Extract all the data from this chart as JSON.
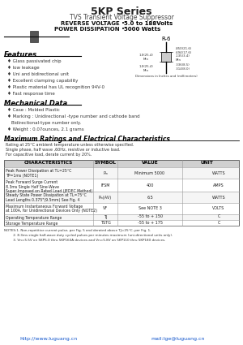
{
  "title": "5KP Series",
  "subtitle": "TVS Transient Voltage Suppressor",
  "rev_voltage_label": "REVERSE VOLTAGE",
  "rev_voltage_value": "5.0 to 188Volts",
  "power_diss_label": "POWER DISSIPATION",
  "power_diss_value": "5000 Watts",
  "features_title": "Features",
  "features": [
    "Glass passivated chip",
    "low leakage",
    "Uni and bidirectional unit",
    "Excellent clamping capability",
    "Plastic material has UL recognition 94V-0",
    "Fast response time"
  ],
  "mech_title": "Mechanical Data",
  "mech": [
    "Case : Molded Plastic",
    "Marking : Unidirectional -type number and cathode band",
    "              Bidirectional-type number only.",
    "Weight : 0.07ounces, 2.1 grams"
  ],
  "max_ratings_title": "Maximum Ratings and Electrical Characteristics",
  "rating_notes": [
    "Rating at 25°C ambient temperature unless otherwise specified.",
    "Single phase, half wave ,60Hz, resistive or inductive load.",
    "For capacitive load, derate current by 20%."
  ],
  "table_headers": [
    "CHARACTERISTICS",
    "SYMBOL",
    "VALUE",
    "UNIT"
  ],
  "table_rows": [
    [
      "Peak Power Dissipation at TL=25°C\nTP=1ms (NOTE1)",
      "Pₘ",
      "Minimum 5000",
      "WATTS"
    ],
    [
      "Peak Forward Surge Current\n8.3ms Single Half Sine-Wave\nSuper Imposed on Rated Load (JEDEC Method)",
      "IFSM",
      "400",
      "AMPS"
    ],
    [
      "Steady State Power Dissipation at TL=75°C\nLead Lengths 0.375\"(9.5mm) See Fig. 4",
      "Pₘ(AV)",
      "6.5",
      "WATTS"
    ],
    [
      "Maximum Instantaneous Forward Voltage\nat 100A, for Unidirectional Devices Only (NOTE2)",
      "VF",
      "See NOTE 3",
      "VOLTS"
    ],
    [
      "Operating Temperature Range",
      "TJ",
      "-55 to + 150",
      "C"
    ],
    [
      "Storage Temperature Range",
      "TSTG",
      "-55 to + 175",
      "C"
    ]
  ],
  "notes": [
    "NOTES:1. Non-repetitive current pulse, per Fig. 5 and derated above TJ=25°C, per Fig. 1.",
    "         2. 8.3ms single half-wave duty cycled pulses per minutes maximum (uni-directional units only).",
    "         3. Vn=5.5V on 5KP5.0 thru 5KP160A devices and Vn=5.8V on 5KP110 thru 5KP180 devices."
  ],
  "footer_left": "http://www.luguang.cn",
  "footer_right": "mail:lge@luguang.cn",
  "bg_color": "#ffffff",
  "text_color": "#000000",
  "header_bg": "#e8e8e8",
  "table_line_color": "#888888"
}
